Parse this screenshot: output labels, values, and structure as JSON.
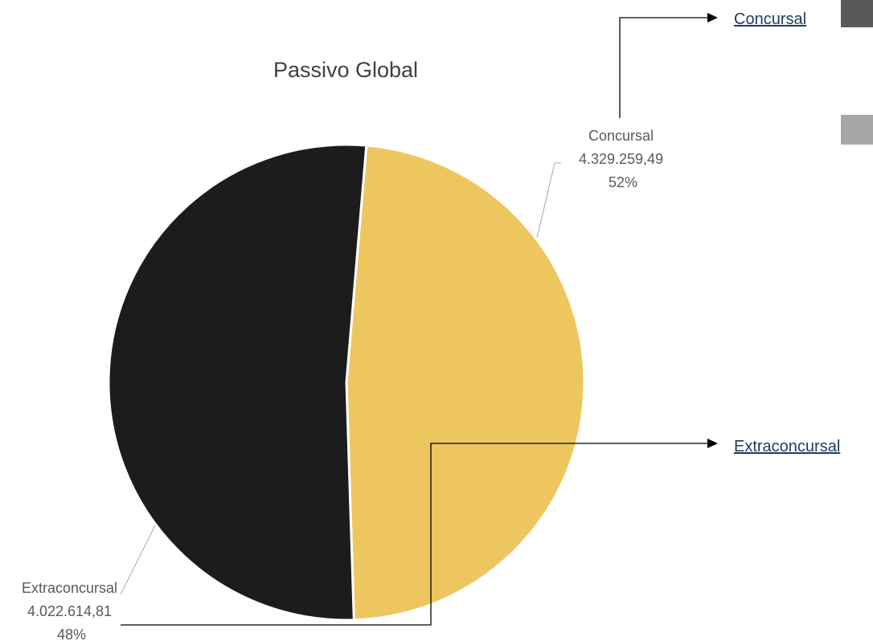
{
  "chart_data": {
    "type": "pie",
    "title": "Passivo Global",
    "series": [
      {
        "slices": [
          {
            "label": "Concursal",
            "value": 4329259.49,
            "value_text": "4.329.259,49",
            "percent_text": "52%",
            "color": "#1c1c1c"
          },
          {
            "label": "Extraconcursal",
            "value": 4022614.81,
            "value_text": "4.022.614,81",
            "percent_text": "48%",
            "color": "#eec660"
          }
        ]
      }
    ]
  },
  "nav": {
    "concursal": {
      "label": "Concursal",
      "swatch_color": "#595959"
    },
    "extraconcursal": {
      "label": "Extraconcursal"
    },
    "secondary_swatch_color": "#a6a6a6"
  }
}
